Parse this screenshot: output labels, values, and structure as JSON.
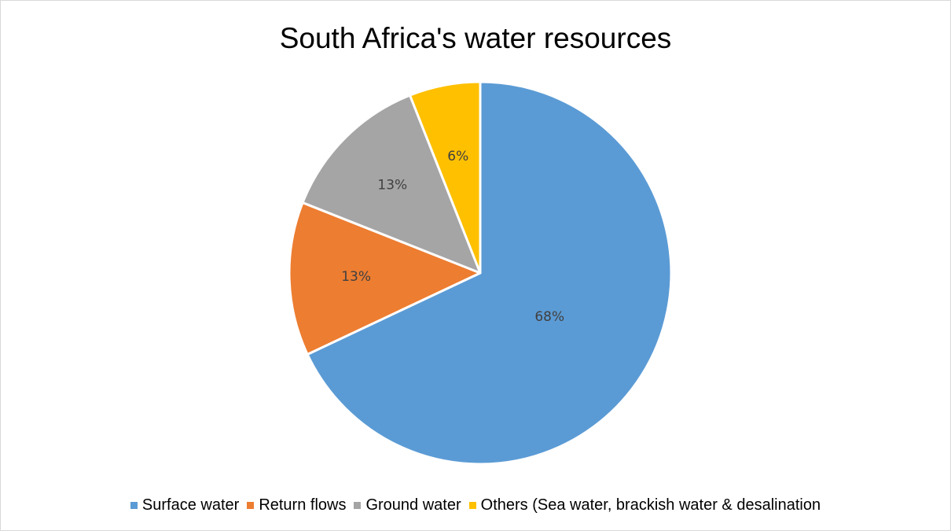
{
  "chart_data": {
    "type": "pie",
    "title": "South Africa's water resources",
    "categories": [
      "Surface water",
      "Return flows",
      "Ground water",
      "Others (Sea water, brackish water & desalination"
    ],
    "values": [
      68,
      13,
      13,
      6
    ],
    "labels": [
      "68%",
      "13%",
      "13%",
      "6%"
    ],
    "colors": [
      "#5B9BD5",
      "#ED7D31",
      "#A5A5A5",
      "#FFC000"
    ],
    "legend_position": "bottom"
  }
}
